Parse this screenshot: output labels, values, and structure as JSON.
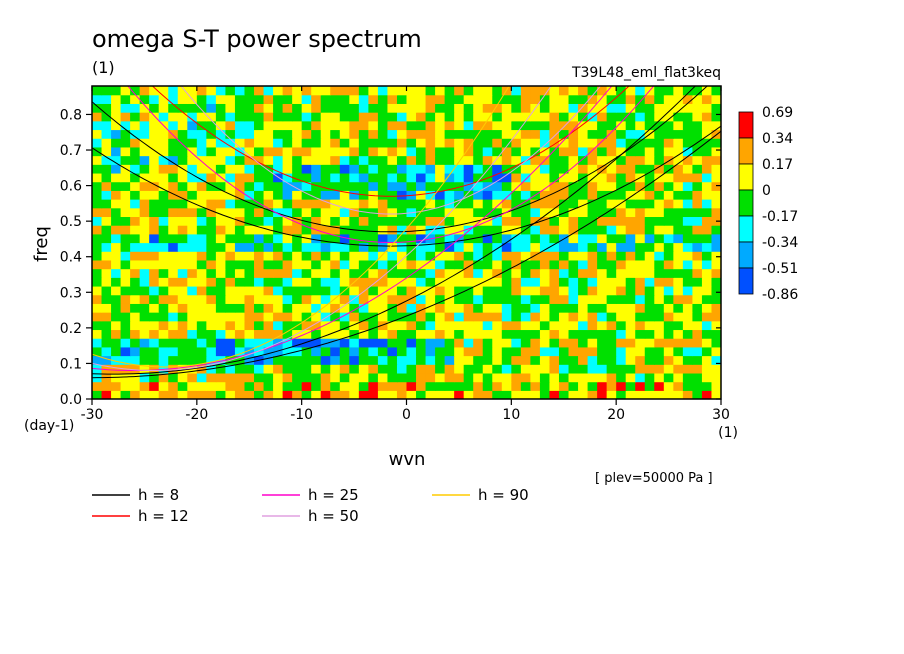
{
  "chart_data": {
    "type": "heatmap",
    "title": "omega S-T power spectrum",
    "units_label": "(1)",
    "run_name": "T39L48_eml_flat3keq",
    "xlabel": "wvn",
    "ylabel": "freq",
    "x_unit_label": "(1)",
    "y_unit_label": "(day-1)",
    "xlim": [
      -30,
      30
    ],
    "ylim": [
      0,
      0.88
    ],
    "x_ticks": [
      "-30",
      "-20",
      "-10",
      "0",
      "10",
      "20",
      "30"
    ],
    "y_ticks": [
      "0.0",
      "0.1",
      "0.2",
      "0.3",
      "0.4",
      "0.5",
      "0.6",
      "0.7",
      "0.8"
    ],
    "colorbar": {
      "labels": [
        "0.69",
        "0.34",
        "0.17",
        "0",
        "-0.17",
        "-0.34",
        "-0.51",
        "-0.86"
      ],
      "colors": [
        "#ff0000",
        "#ffa500",
        "#ffff00",
        "#00e000",
        "#00ffff",
        "#00aaff",
        "#0050ff"
      ]
    },
    "level_note": "[ plev=50000 Pa ]",
    "series": [
      {
        "name": "h =  8",
        "color": "#000000"
      },
      {
        "name": "h = 12",
        "color": "#ff0000"
      },
      {
        "name": "h = 25",
        "color": "#ff00cc"
      },
      {
        "name": "h = 50",
        "color": "#e0a0e0"
      },
      {
        "name": "h = 90",
        "color": "#ffcc00"
      }
    ]
  }
}
